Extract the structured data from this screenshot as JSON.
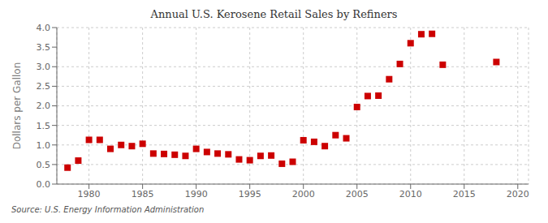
{
  "chart_data": {
    "type": "scatter",
    "title": "Annual U.S. Kerosene Retail Sales by Refiners",
    "ylabel": "Dollars per Gallon",
    "source": "Source: U.S. Energy Information Administration",
    "x": [
      1978,
      1979,
      1980,
      1981,
      1982,
      1983,
      1984,
      1985,
      1986,
      1987,
      1988,
      1989,
      1990,
      1991,
      1992,
      1993,
      1994,
      1995,
      1996,
      1997,
      1998,
      1999,
      2000,
      2001,
      2002,
      2003,
      2004,
      2005,
      2006,
      2007,
      2008,
      2009,
      2010,
      2011,
      2012,
      2013,
      2018
    ],
    "values": [
      0.42,
      0.6,
      1.13,
      1.13,
      0.9,
      1.0,
      0.97,
      1.03,
      0.78,
      0.77,
      0.75,
      0.72,
      0.9,
      0.82,
      0.78,
      0.76,
      0.63,
      0.61,
      0.72,
      0.73,
      0.52,
      0.57,
      1.12,
      1.08,
      0.97,
      1.25,
      1.17,
      1.97,
      2.25,
      2.26,
      2.68,
      3.07,
      3.6,
      3.83,
      3.84,
      3.05,
      3.12
    ],
    "color": "#cc0000",
    "marker": "square",
    "xlim": [
      1977,
      2021
    ],
    "ylim": [
      0,
      4
    ],
    "xticks": [
      1980,
      1985,
      1990,
      1995,
      2000,
      2005,
      2010,
      2015,
      2020
    ],
    "yticks": [
      {
        "value": 0,
        "label": "0.0"
      },
      0.5,
      {
        "value": 1,
        "label": "1.0"
      },
      1.5,
      {
        "value": 2,
        "label": "2.0"
      },
      2.5,
      {
        "value": 3,
        "label": "3.0"
      },
      3.5,
      {
        "value": 4,
        "label": "4.0"
      }
    ],
    "grid": true
  }
}
